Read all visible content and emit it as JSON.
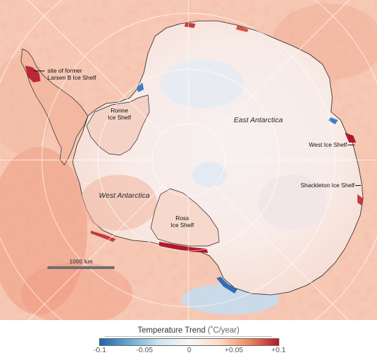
{
  "map": {
    "type": "polar stereographic temperature-trend map of Antarctica",
    "colors": {
      "strong_warming": "#b2182b",
      "warming": "#ef8a62",
      "mild_warming": "#f8cfbb",
      "neutral": "#f5f0ee",
      "cooling": "#92c5de",
      "strong_cooling": "#2166ac",
      "coastline": "#222222",
      "graticule": "#ffffff"
    },
    "regions": {
      "west": "West Antarctica",
      "east": "East Antarctica"
    },
    "annotations": [
      {
        "id": "larsen-b",
        "lines": [
          "site of former",
          "Larsen B Ice Shelf"
        ]
      },
      {
        "id": "ronne",
        "lines": [
          "Ronne",
          "Ice Shelf"
        ]
      },
      {
        "id": "ross",
        "lines": [
          "Ross",
          "Ice Shelf"
        ]
      },
      {
        "id": "west-ice-shelf",
        "lines": [
          "West Ice Shelf"
        ]
      },
      {
        "id": "shackleton",
        "lines": [
          "Shackleton Ice Shelf"
        ]
      }
    ],
    "scale": {
      "label": "1000 km",
      "length_km": 1000
    }
  },
  "legend": {
    "title": "Temperature Trend",
    "unit": "(˚C/year)",
    "min": -0.1,
    "max": 0.1,
    "ticks": [
      {
        "value": -0.1,
        "label": "-0.1"
      },
      {
        "value": -0.05,
        "label": "-0.05"
      },
      {
        "value": 0,
        "label": "0"
      },
      {
        "value": 0.05,
        "label": "+0.05"
      },
      {
        "value": 0.1,
        "label": "+0.1"
      }
    ],
    "gradient": [
      "#2166ac",
      "#67a9cf",
      "#d1e5f0",
      "#f7f7f7",
      "#fddbc7",
      "#ef8a62",
      "#b2182b"
    ]
  }
}
